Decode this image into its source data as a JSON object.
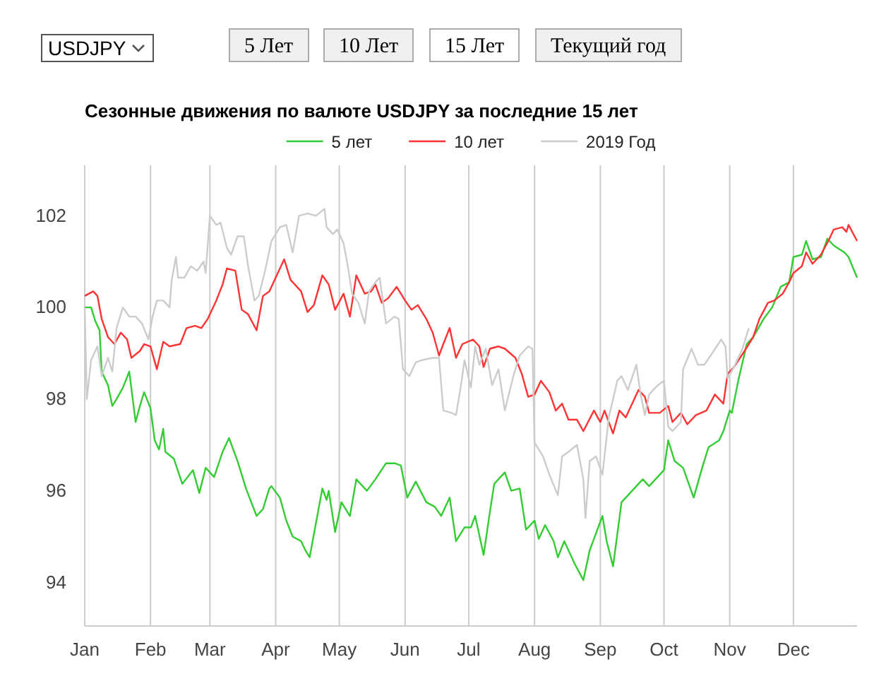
{
  "chart_data": {
    "type": "line",
    "title": "Сезонные движения по валюте USDJPY за последние 15 лет",
    "annotations": [
      "USDJPY",
      "5 Лет",
      "10 Лет",
      "15 Лет",
      "Текущий год"
    ],
    "legend": "top",
    "grid": "x",
    "line_style": "solid",
    "marker": "none",
    "ylim": [
      93.05,
      103.1
    ],
    "yticks": [
      94,
      96,
      98,
      100,
      102
    ],
    "xlim": [
      "--01-01",
      "--12-31"
    ],
    "xticks": [
      {
        "value": "--01-01",
        "label": "Jan"
      },
      {
        "value": "--02-01",
        "label": "Feb"
      },
      {
        "value": "--03-01",
        "label": "Mar"
      },
      {
        "value": "--04-01",
        "label": "Apr"
      },
      {
        "value": "--05-01",
        "label": "May"
      },
      {
        "value": "--06-01",
        "label": "Jun"
      },
      {
        "value": "--07-01",
        "label": "Jul"
      },
      {
        "value": "--08-01",
        "label": "Aug"
      },
      {
        "value": "--09-01",
        "label": "Sep"
      },
      {
        "value": "--10-01",
        "label": "Oct"
      },
      {
        "value": "--11-01",
        "label": "Nov"
      },
      {
        "value": "--12-01",
        "label": "Dec"
      }
    ],
    "series": [
      {
        "name": "5 лет",
        "color": "#33cc33",
        "x": [
          "--01-01",
          "--01-04",
          "--01-06",
          "--01-08",
          "--01-09",
          "--01-12",
          "--01-14",
          "--01-16",
          "--01-19",
          "--01-22",
          "--01-25",
          "--01-27",
          "--01-29",
          "--02-01",
          "--02-03",
          "--02-05",
          "--02-07",
          "--02-08",
          "--02-12",
          "--02-16",
          "--02-21",
          "--02-24",
          "--02-27",
          "--03-03",
          "--03-07",
          "--03-10",
          "--03-14",
          "--03-18",
          "--03-23",
          "--03-26",
          "--03-29",
          "--03-30",
          "--04-03",
          "--04-06",
          "--04-09",
          "--04-13",
          "--04-15",
          "--04-17",
          "--04-19",
          "--04-23",
          "--04-25",
          "--04-26",
          "--04-29",
          "--05-02",
          "--05-06",
          "--05-09",
          "--05-14",
          "--05-18",
          "--05-23",
          "--05-27",
          "--05-30",
          "--06-02",
          "--06-06",
          "--06-11",
          "--06-15",
          "--06-18",
          "--06-22",
          "--06-25",
          "--06-29",
          "--07-02",
          "--07-04",
          "--07-08",
          "--07-11",
          "--07-13",
          "--07-18",
          "--07-21",
          "--07-25",
          "--07-28",
          "--08-01",
          "--08-03",
          "--08-06",
          "--08-10",
          "--08-12",
          "--08-15",
          "--08-20",
          "--08-24",
          "--08-27",
          "--08-31",
          "--09-02",
          "--09-04",
          "--09-07",
          "--09-11",
          "--09-15",
          "--09-21",
          "--09-24",
          "--09-29",
          "--10-01",
          "--10-03",
          "--10-06",
          "--10-10",
          "--10-15",
          "--10-19",
          "--10-22",
          "--10-27",
          "--10-29",
          "--11-01",
          "--11-02",
          "--11-05",
          "--11-09",
          "--11-12",
          "--11-17",
          "--11-21",
          "--11-25",
          "--11-29",
          "--12-01",
          "--12-05",
          "--12-07",
          "--12-10",
          "--12-14",
          "--12-17",
          "--12-20",
          "--12-25",
          "--12-27",
          "--12-31"
        ],
        "values": [
          100.0,
          100.0,
          99.7,
          99.5,
          98.6,
          98.3,
          97.85,
          98.0,
          98.25,
          98.6,
          97.5,
          97.85,
          98.15,
          97.8,
          97.1,
          96.9,
          97.35,
          96.85,
          96.7,
          96.15,
          96.45,
          95.95,
          96.5,
          96.3,
          96.85,
          97.15,
          96.65,
          96.05,
          95.45,
          95.6,
          96.05,
          96.1,
          95.85,
          95.35,
          95.0,
          94.9,
          94.7,
          94.55,
          95.05,
          96.05,
          95.8,
          96.0,
          95.1,
          95.75,
          95.45,
          96.25,
          96.0,
          96.25,
          96.6,
          96.6,
          96.55,
          95.85,
          96.2,
          95.75,
          95.65,
          95.45,
          95.85,
          94.9,
          95.2,
          95.2,
          95.45,
          94.6,
          95.55,
          96.15,
          96.4,
          96.0,
          96.05,
          95.15,
          95.35,
          94.95,
          95.25,
          94.9,
          94.55,
          94.9,
          94.4,
          94.05,
          94.7,
          95.2,
          95.45,
          94.9,
          94.35,
          95.75,
          95.95,
          96.25,
          96.1,
          96.35,
          96.45,
          97.1,
          96.65,
          96.5,
          95.85,
          96.5,
          96.95,
          97.1,
          97.3,
          97.75,
          97.7,
          98.4,
          99.2,
          99.35,
          99.75,
          100.0,
          100.45,
          100.55,
          101.1,
          101.15,
          101.45,
          101.05,
          101.1,
          101.5,
          101.35,
          101.2,
          101.1,
          100.65
        ]
      },
      {
        "name": "10 лет",
        "color": "#ff3333",
        "x": [
          "--01-01",
          "--01-05",
          "--01-07",
          "--01-09",
          "--01-12",
          "--01-15",
          "--01-18",
          "--01-21",
          "--01-23",
          "--01-27",
          "--01-29",
          "--02-01",
          "--02-04",
          "--02-07",
          "--02-10",
          "--02-15",
          "--02-18",
          "--02-22",
          "--02-25",
          "--02-28",
          "--03-04",
          "--03-07",
          "--03-09",
          "--03-13",
          "--03-16",
          "--03-19",
          "--03-23",
          "--03-26",
          "--03-29",
          "--04-01",
          "--04-05",
          "--04-08",
          "--04-13",
          "--04-16",
          "--04-19",
          "--04-23",
          "--04-26",
          "--04-29",
          "--05-03",
          "--05-06",
          "--05-09",
          "--05-13",
          "--05-16",
          "--05-18",
          "--05-21",
          "--05-24",
          "--05-28",
          "--06-01",
          "--06-04",
          "--06-07",
          "--06-11",
          "--06-14",
          "--06-17",
          "--06-19",
          "--06-22",
          "--06-25",
          "--06-28",
          "--07-03",
          "--07-06",
          "--07-08",
          "--07-11",
          "--07-15",
          "--07-18",
          "--07-23",
          "--07-26",
          "--07-29",
          "--08-01",
          "--08-04",
          "--08-08",
          "--08-11",
          "--08-14",
          "--08-17",
          "--08-21",
          "--08-24",
          "--08-29",
          "--09-01",
          "--09-03",
          "--09-07",
          "--09-10",
          "--09-13",
          "--09-19",
          "--09-22",
          "--09-24",
          "--09-29",
          "--10-03",
          "--10-05",
          "--10-09",
          "--10-12",
          "--10-16",
          "--10-21",
          "--10-25",
          "--10-29",
          "--10-31",
          "--11-03",
          "--11-08",
          "--11-12",
          "--11-15",
          "--11-19",
          "--11-22",
          "--11-26",
          "--11-29",
          "--12-01",
          "--12-05",
          "--12-07",
          "--12-10",
          "--12-14",
          "--12-18",
          "--12-20",
          "--12-24",
          "--12-26",
          "--12-27",
          "--12-31"
        ],
        "values": [
          100.25,
          100.35,
          100.25,
          99.75,
          99.35,
          99.2,
          99.45,
          99.3,
          98.9,
          99.05,
          99.2,
          99.15,
          98.65,
          99.25,
          99.15,
          99.2,
          99.55,
          99.6,
          99.55,
          99.75,
          100.15,
          100.5,
          100.85,
          100.8,
          99.95,
          99.85,
          99.5,
          100.25,
          100.35,
          100.65,
          101.05,
          100.6,
          100.35,
          99.9,
          100.05,
          100.7,
          100.5,
          99.95,
          100.3,
          99.8,
          100.7,
          100.3,
          100.35,
          100.5,
          100.1,
          100.2,
          100.45,
          100.15,
          99.95,
          100.05,
          99.75,
          99.45,
          98.95,
          99.2,
          99.55,
          98.9,
          99.2,
          99.3,
          99.15,
          98.7,
          99.1,
          99.15,
          99.1,
          98.9,
          98.55,
          98.05,
          98.1,
          98.4,
          98.15,
          97.75,
          97.9,
          97.55,
          97.55,
          97.3,
          97.75,
          97.5,
          97.75,
          97.25,
          97.75,
          97.6,
          98.2,
          98.05,
          97.7,
          97.7,
          97.85,
          97.5,
          97.7,
          97.45,
          97.65,
          97.75,
          98.1,
          97.9,
          98.55,
          98.7,
          99.05,
          99.35,
          99.75,
          100.1,
          100.15,
          100.3,
          100.55,
          100.75,
          100.9,
          101.2,
          100.95,
          101.15,
          101.5,
          101.7,
          101.75,
          101.65,
          101.8,
          101.45
        ]
      },
      {
        "name": "2019 Год",
        "color": "#cccccc",
        "x": [
          "--01-01",
          "--01-02",
          "--01-04",
          "--01-07",
          "--01-09",
          "--01-12",
          "--01-14",
          "--01-16",
          "--01-19",
          "--01-22",
          "--01-25",
          "--01-28",
          "--01-31",
          "--02-02",
          "--02-04",
          "--02-07",
          "--02-10",
          "--02-11",
          "--02-13",
          "--02-14",
          "--02-17",
          "--02-20",
          "--02-23",
          "--02-26",
          "--02-27",
          "--03-01",
          "--03-04",
          "--03-06",
          "--03-09",
          "--03-11",
          "--03-14",
          "--03-17",
          "--03-19",
          "--03-22",
          "--03-24",
          "--03-27",
          "--03-30",
          "--04-03",
          "--04-06",
          "--04-09",
          "--04-12",
          "--04-16",
          "--04-20",
          "--04-24",
          "--04-25",
          "--04-28",
          "--04-30",
          "--05-03",
          "--05-05",
          "--05-07",
          "--05-10",
          "--05-13",
          "--05-15",
          "--05-18",
          "--05-20",
          "--05-23",
          "--05-27",
          "--05-29",
          "--05-31",
          "--06-03",
          "--06-06",
          "--06-09",
          "--06-14",
          "--06-17",
          "--06-19",
          "--06-23",
          "--06-25",
          "--06-27",
          "--06-29",
          "--07-02",
          "--07-04",
          "--07-06",
          "--07-09",
          "--07-12",
          "--07-15",
          "--07-18",
          "--07-22",
          "--07-25",
          "--07-29",
          "--07-31",
          "--08-01",
          "--08-05",
          "--08-08",
          "--08-12",
          "--08-14",
          "--08-17",
          "--08-21",
          "--08-24",
          "--08-25",
          "--08-27",
          "--08-30",
          "--09-02",
          "--09-05",
          "--09-09",
          "--09-11",
          "--09-14",
          "--09-18",
          "--09-20",
          "--09-22",
          "--09-24",
          "--09-28",
          "--10-01",
          "--10-03",
          "--10-05",
          "--10-09",
          "--10-10",
          "--10-14",
          "--10-17",
          "--10-20",
          "--10-23",
          "--10-28",
          "--10-30",
          "--10-31",
          "--11-03",
          "--11-07",
          "--11-10"
        ],
        "values": [
          100.0,
          98.0,
          98.85,
          99.15,
          98.5,
          98.9,
          98.6,
          99.55,
          100.0,
          99.8,
          99.8,
          99.65,
          99.3,
          99.8,
          100.15,
          100.15,
          100.0,
          100.6,
          101.1,
          100.65,
          100.65,
          100.9,
          100.8,
          101.0,
          100.75,
          102.0,
          101.8,
          101.85,
          101.3,
          101.15,
          101.55,
          101.55,
          100.9,
          100.15,
          100.25,
          100.8,
          101.45,
          101.75,
          101.8,
          101.2,
          102.0,
          102.05,
          102.0,
          102.15,
          101.75,
          101.6,
          101.7,
          101.4,
          100.9,
          100.3,
          100.1,
          99.65,
          100.35,
          100.55,
          100.65,
          99.65,
          99.8,
          99.75,
          98.65,
          98.5,
          98.8,
          98.85,
          98.9,
          98.9,
          97.75,
          97.7,
          97.65,
          98.2,
          98.85,
          98.25,
          99.15,
          98.75,
          99.1,
          98.3,
          98.65,
          97.75,
          98.5,
          98.95,
          99.15,
          99.1,
          97.05,
          96.75,
          96.35,
          95.9,
          96.75,
          96.85,
          97.0,
          96.25,
          95.4,
          96.65,
          96.75,
          96.35,
          97.6,
          98.4,
          98.5,
          98.2,
          98.75,
          98.1,
          97.65,
          98.1,
          98.3,
          98.4,
          97.4,
          97.3,
          97.5,
          98.65,
          99.1,
          98.75,
          98.75,
          98.95,
          99.3,
          99.15,
          98.45,
          98.7,
          99.1,
          99.55
        ]
      }
    ]
  }
}
